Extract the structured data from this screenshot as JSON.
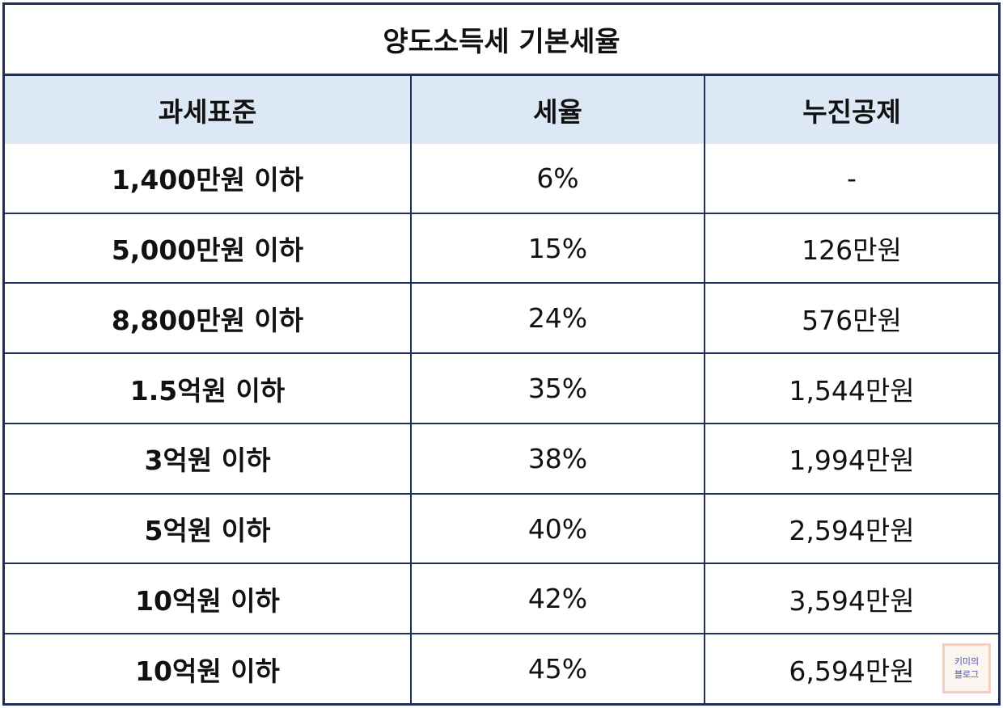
{
  "title": "양도소득세 기본세율",
  "headers": [
    "과세표준",
    "세율",
    "누진공제"
  ],
  "rows": [
    {
      "bracket": "1,400만원 이하",
      "rate": "6%",
      "deduction": "-"
    },
    {
      "bracket": "5,000만원 이하",
      "rate": "15%",
      "deduction": "126만원"
    },
    {
      "bracket": "8,800만원 이하",
      "rate": "24%",
      "deduction": "576만원"
    },
    {
      "bracket": "1.5억원 이하",
      "rate": "35%",
      "deduction": "1,544만원"
    },
    {
      "bracket": "3억원 이하",
      "rate": "38%",
      "deduction": "1,994만원"
    },
    {
      "bracket": "5억원 이하",
      "rate": "40%",
      "deduction": "2,594만원"
    },
    {
      "bracket": "10억원 이하",
      "rate": "42%",
      "deduction": "3,594만원"
    },
    {
      "bracket": "10억원 이하",
      "rate": "45%",
      "deduction": "6,594만원"
    }
  ],
  "watermark": {
    "line1": "키미의",
    "line2": "블로그"
  },
  "colors": {
    "border": "#1f2d5a",
    "header_bg": "#dde8f6"
  }
}
